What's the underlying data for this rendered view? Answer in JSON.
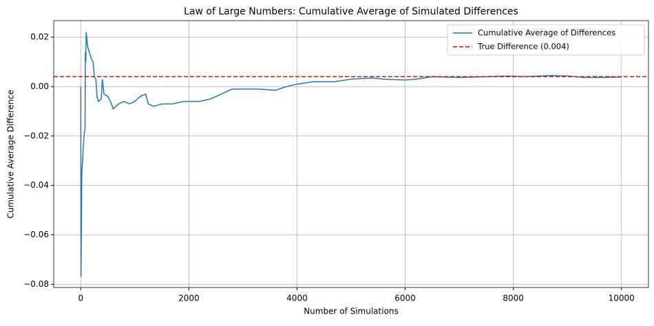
{
  "chart_data": {
    "type": "line",
    "title": "Law of Large Numbers: Cumulative Average of Simulated Differences",
    "x_label": "Number of Simulations",
    "y_label": "Cumulative Average Difference",
    "x": [
      1,
      5,
      20,
      60,
      80,
      85,
      95,
      100,
      130,
      200,
      230,
      250,
      280,
      300,
      330,
      380,
      400,
      430,
      500,
      550,
      600,
      700,
      800,
      900,
      1000,
      1100,
      1200,
      1250,
      1350,
      1500,
      1700,
      1900,
      2200,
      2400,
      2600,
      2800,
      3000,
      3300,
      3600,
      3800,
      4000,
      4300,
      4700,
      5000,
      5400,
      5600,
      6000,
      6200,
      6500,
      7000,
      7500,
      7900,
      8200,
      8700,
      9000,
      9300,
      9700,
      10000
    ],
    "series": [
      {
        "name": "Cumulative Average of Differences",
        "color": "#1f77b4",
        "values": [
          0.0,
          -0.077,
          -0.035,
          -0.02,
          -0.017,
          0.014,
          0.01,
          0.022,
          0.016,
          0.011,
          0.01,
          0.004,
          0.003,
          -0.004,
          -0.006,
          -0.005,
          0.003,
          -0.003,
          -0.004,
          -0.006,
          -0.009,
          -0.007,
          -0.006,
          -0.007,
          -0.006,
          -0.004,
          -0.003,
          -0.007,
          -0.008,
          -0.007,
          -0.007,
          -0.006,
          -0.006,
          -0.005,
          -0.003,
          -0.001,
          -0.001,
          -0.001,
          -0.0015,
          0.0,
          0.001,
          0.002,
          0.002,
          0.003,
          0.0035,
          0.003,
          0.0027,
          0.003,
          0.004,
          0.0037,
          0.004,
          0.0043,
          0.004,
          0.0045,
          0.0043,
          0.0037,
          0.0037,
          0.0039
        ]
      }
    ],
    "reference_line": {
      "name": "True Difference (0.004)",
      "value": 0.004,
      "color": "#e00000"
    },
    "xlim": [
      -500,
      10500
    ],
    "ylim": [
      -0.0813,
      0.0267
    ],
    "xticks": [
      0,
      2000,
      4000,
      6000,
      8000,
      10000
    ],
    "yticks": [
      {
        "value": -0.08,
        "label": "−0.08"
      },
      {
        "value": -0.06,
        "label": "−0.06"
      },
      {
        "value": -0.04,
        "label": "−0.04"
      },
      {
        "value": -0.02,
        "label": "−0.02"
      },
      {
        "value": 0,
        "label": "0.00"
      },
      0.02
    ],
    "grid": true,
    "legend": "upper right"
  }
}
